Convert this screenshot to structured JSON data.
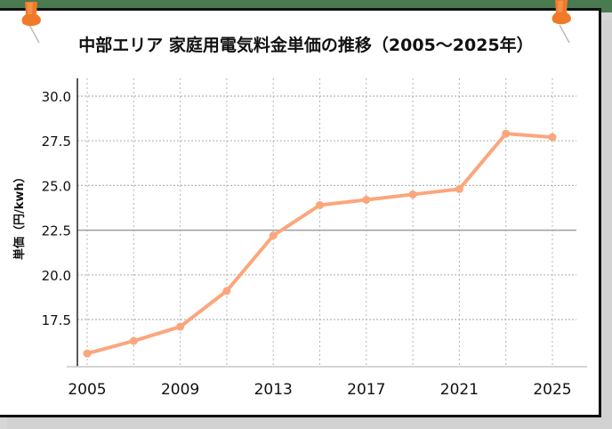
{
  "title": "中部エリア 家庭用電気料金単価の推移（2005〜2025年）",
  "colors": {
    "line": "#fba67c",
    "background_top": "#4a7a50",
    "grid": "#b5b5b5",
    "pin": "#f07a2a"
  },
  "chart_data": {
    "type": "line",
    "title": "中部エリア 家庭用電気料金単価の推移（2005〜2025年）",
    "xlabel": "",
    "ylabel": "単価（円/kwh）",
    "x": [
      2005,
      2007,
      2009,
      2011,
      2013,
      2015,
      2017,
      2019,
      2021,
      2023,
      2025
    ],
    "series": [
      {
        "name": "家庭用電気料金単価",
        "values": [
          15.6,
          16.3,
          17.1,
          19.1,
          22.2,
          23.9,
          24.2,
          24.5,
          24.8,
          27.9,
          27.7
        ]
      }
    ],
    "xticks": [
      "2005",
      "2009",
      "2013",
      "2017",
      "2021",
      "2025"
    ],
    "yticks": [
      "30.0",
      "27.5",
      "25.0",
      "22.5",
      "20.0",
      "17.5"
    ],
    "ylim": [
      14.9,
      30.5
    ],
    "grid": true,
    "legend": "none"
  },
  "axis": {
    "ylabel": "単価（円/kwh）",
    "yticks": [
      "30.0",
      "27.5",
      "25.0",
      "22.5",
      "20.0",
      "17.5"
    ],
    "xticks": [
      "2005",
      "2009",
      "2013",
      "2017",
      "2021",
      "2025"
    ]
  }
}
